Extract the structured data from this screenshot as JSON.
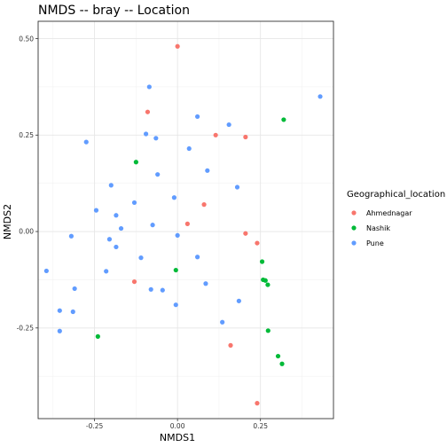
{
  "chart_data": {
    "type": "scatter",
    "title": "NMDS -- bray -- Location",
    "xlabel": "NMDS1",
    "ylabel": "NMDS2",
    "xlim": [
      -0.42,
      0.47
    ],
    "ylim": [
      -0.485,
      0.545
    ],
    "xticks": [
      -0.25,
      0.0,
      0.25
    ],
    "xtick_labels": [
      "-0.25",
      "0.00",
      "0.25"
    ],
    "yticks": [
      -0.25,
      0.0,
      0.25,
      0.5
    ],
    "ytick_labels": [
      "-0.25",
      "0.00",
      "0.25",
      "0.50"
    ],
    "grid": true,
    "legend_title": "Geographical_location",
    "legend_position": "right",
    "series": [
      {
        "name": "Ahmednagar",
        "color": "#F8766D",
        "points": [
          [
            0.0,
            0.48
          ],
          [
            -0.09,
            0.31
          ],
          [
            0.115,
            0.25
          ],
          [
            0.205,
            0.245
          ],
          [
            0.08,
            0.07
          ],
          [
            0.03,
            0.02
          ],
          [
            0.205,
            -0.005
          ],
          [
            0.24,
            -0.03
          ],
          [
            -0.13,
            -0.13
          ],
          [
            0.16,
            -0.295
          ],
          [
            0.24,
            -0.445
          ]
        ]
      },
      {
        "name": "Nashik",
        "color": "#00BA38",
        "points": [
          [
            0.32,
            0.29
          ],
          [
            -0.125,
            0.18
          ],
          [
            -0.005,
            -0.1
          ],
          [
            0.255,
            -0.078
          ],
          [
            0.258,
            -0.125
          ],
          [
            0.265,
            -0.127
          ],
          [
            0.272,
            -0.138
          ],
          [
            -0.24,
            -0.272
          ],
          [
            0.273,
            -0.257
          ],
          [
            0.303,
            -0.323
          ],
          [
            0.315,
            -0.343
          ]
        ]
      },
      {
        "name": "Pune",
        "color": "#619CFF",
        "points": [
          [
            0.43,
            0.35
          ],
          [
            -0.085,
            0.375
          ],
          [
            0.06,
            0.298
          ],
          [
            0.155,
            0.277
          ],
          [
            -0.095,
            0.253
          ],
          [
            -0.065,
            0.242
          ],
          [
            0.035,
            0.215
          ],
          [
            -0.275,
            0.232
          ],
          [
            0.09,
            0.158
          ],
          [
            -0.06,
            0.148
          ],
          [
            -0.2,
            0.12
          ],
          [
            0.18,
            0.115
          ],
          [
            -0.13,
            0.075
          ],
          [
            -0.01,
            0.088
          ],
          [
            -0.245,
            0.055
          ],
          [
            -0.185,
            0.042
          ],
          [
            -0.075,
            0.017
          ],
          [
            -0.17,
            0.008
          ],
          [
            0.0,
            -0.01
          ],
          [
            -0.205,
            -0.02
          ],
          [
            -0.32,
            -0.012
          ],
          [
            -0.185,
            -0.04
          ],
          [
            -0.11,
            -0.068
          ],
          [
            0.06,
            -0.066
          ],
          [
            -0.215,
            -0.103
          ],
          [
            -0.395,
            -0.102
          ],
          [
            -0.08,
            -0.15
          ],
          [
            -0.045,
            -0.152
          ],
          [
            -0.31,
            -0.148
          ],
          [
            0.085,
            -0.135
          ],
          [
            -0.005,
            -0.19
          ],
          [
            0.185,
            -0.18
          ],
          [
            -0.355,
            -0.205
          ],
          [
            -0.315,
            -0.208
          ],
          [
            0.135,
            -0.235
          ],
          [
            -0.355,
            -0.258
          ]
        ]
      }
    ]
  }
}
